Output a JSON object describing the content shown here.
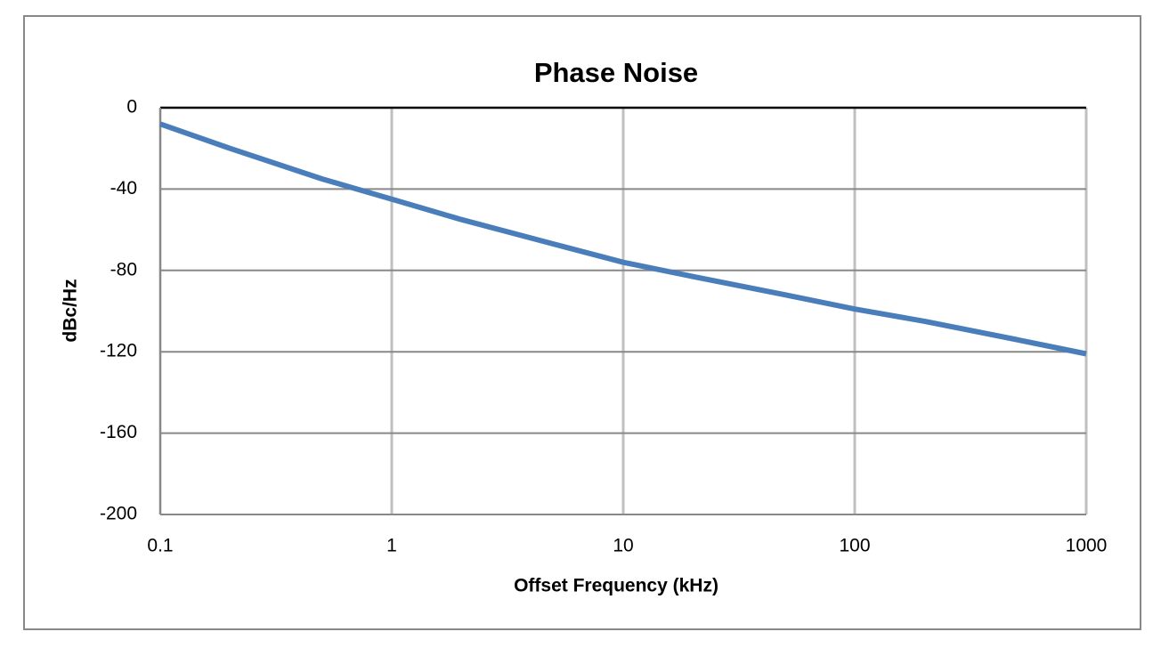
{
  "chart_data": {
    "type": "line",
    "title": "Phase Noise",
    "x_label": "Offset Frequency (kHz)",
    "y_label": "dBc/Hz",
    "x": [
      0.1,
      0.2,
      0.5,
      1,
      2,
      5,
      10,
      20,
      50,
      100,
      200,
      500,
      1000
    ],
    "values": [
      -8,
      -20,
      -35,
      -45,
      -55,
      -67,
      -76,
      -83,
      -92,
      -99,
      -105,
      -114,
      -121
    ],
    "color": "#4a7ebb",
    "xscale": "log",
    "xlim": [
      0.1,
      1000
    ],
    "xticks": [
      0.1,
      1,
      10,
      100,
      1000
    ],
    "ylim": [
      -200,
      0
    ],
    "yticks": [
      -200,
      -160,
      -120,
      -80,
      -40,
      0
    ],
    "grid": true
  }
}
